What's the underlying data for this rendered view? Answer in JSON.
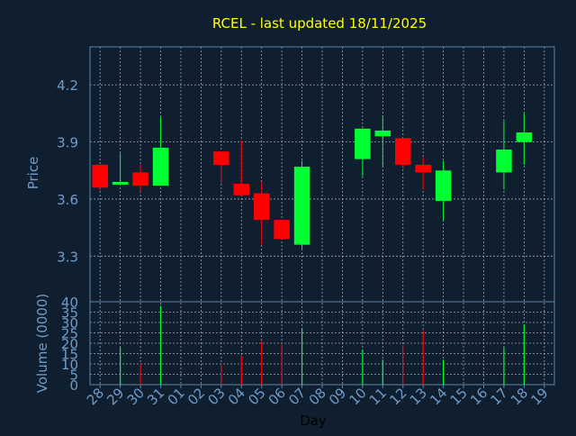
{
  "colors": {
    "background": "#0f1f30",
    "frame": "#5c86a8",
    "grid": "#9aa6b2",
    "title": "#ffff00",
    "axis_text": "#6f9cc8",
    "up": "#00ff33",
    "down": "#ff0000"
  },
  "chart_data": [
    {
      "type": "candlestick",
      "title": "RCEL - last updated 18/11/2025",
      "ylabel": "Price",
      "xlabel": "",
      "ylim": [
        3.06,
        4.4
      ],
      "yticks": [
        3.3,
        3.6,
        3.9,
        4.2
      ],
      "ytick_labels": [
        "3.3",
        "3.6",
        "3.9",
        "4.2"
      ],
      "x": [
        "28",
        "29",
        "30",
        "31",
        "01",
        "02",
        "03",
        "04",
        "05",
        "06",
        "07",
        "08",
        "09",
        "10",
        "11",
        "12",
        "13",
        "14",
        "15",
        "16",
        "17",
        "18",
        "19"
      ],
      "candles": [
        {
          "x": "28",
          "open": 3.78,
          "high": 3.78,
          "low": 3.64,
          "close": 3.66
        },
        {
          "x": "29",
          "open": 3.68,
          "high": 3.84,
          "low": 3.68,
          "close": 3.69
        },
        {
          "x": "30",
          "open": 3.74,
          "high": 3.78,
          "low": 3.64,
          "close": 3.67
        },
        {
          "x": "31",
          "open": 3.67,
          "high": 4.03,
          "low": 3.67,
          "close": 3.87
        },
        {
          "x": "03",
          "open": 3.85,
          "high": 3.85,
          "low": 3.68,
          "close": 3.78
        },
        {
          "x": "04",
          "open": 3.68,
          "high": 3.91,
          "low": 3.62,
          "close": 3.62
        },
        {
          "x": "05",
          "open": 3.63,
          "high": 3.69,
          "low": 3.36,
          "close": 3.49
        },
        {
          "x": "06",
          "open": 3.49,
          "high": 3.49,
          "low": 3.39,
          "close": 3.39
        },
        {
          "x": "07",
          "open": 3.36,
          "high": 3.8,
          "low": 3.34,
          "close": 3.77
        },
        {
          "x": "10",
          "open": 3.81,
          "high": 3.97,
          "low": 3.72,
          "close": 3.97
        },
        {
          "x": "11",
          "open": 3.93,
          "high": 4.04,
          "low": 3.77,
          "close": 3.96
        },
        {
          "x": "12",
          "open": 3.92,
          "high": 3.92,
          "low": 3.76,
          "close": 3.78
        },
        {
          "x": "13",
          "open": 3.78,
          "high": 3.82,
          "low": 3.65,
          "close": 3.74
        },
        {
          "x": "14",
          "open": 3.59,
          "high": 3.8,
          "low": 3.49,
          "close": 3.75
        },
        {
          "x": "17",
          "open": 3.74,
          "high": 4.01,
          "low": 3.65,
          "close": 3.86
        },
        {
          "x": "18",
          "open": 3.9,
          "high": 4.05,
          "low": 3.78,
          "close": 3.95
        }
      ]
    },
    {
      "type": "bar",
      "title": "",
      "ylabel": "Volume (0000)",
      "xlabel": "Day",
      "ylim": [
        0,
        40
      ],
      "yticks": [
        0,
        5,
        10,
        15,
        20,
        25,
        30,
        35,
        40
      ],
      "ytick_labels": [
        "0",
        "5",
        "10",
        "15",
        "20",
        "25",
        "30",
        "35",
        "40"
      ],
      "x": [
        "28",
        "29",
        "30",
        "31",
        "01",
        "02",
        "03",
        "04",
        "05",
        "06",
        "07",
        "08",
        "09",
        "10",
        "11",
        "12",
        "13",
        "14",
        "15",
        "16",
        "17",
        "18",
        "19"
      ],
      "bars": [
        {
          "x": "29",
          "value": 18,
          "direction": "up"
        },
        {
          "x": "30",
          "value": 10,
          "direction": "down"
        },
        {
          "x": "31",
          "value": 38,
          "direction": "up"
        },
        {
          "x": "03",
          "value": 10,
          "direction": "down"
        },
        {
          "x": "04",
          "value": 14,
          "direction": "down"
        },
        {
          "x": "05",
          "value": 21,
          "direction": "down"
        },
        {
          "x": "06",
          "value": 20,
          "direction": "down"
        },
        {
          "x": "07",
          "value": 27,
          "direction": "up"
        },
        {
          "x": "10",
          "value": 17,
          "direction": "up"
        },
        {
          "x": "11",
          "value": 12,
          "direction": "up"
        },
        {
          "x": "12",
          "value": 19,
          "direction": "down"
        },
        {
          "x": "13",
          "value": 26,
          "direction": "down"
        },
        {
          "x": "14",
          "value": 12,
          "direction": "up"
        },
        {
          "x": "17",
          "value": 18,
          "direction": "up"
        },
        {
          "x": "18",
          "value": 29,
          "direction": "up"
        }
      ]
    }
  ]
}
